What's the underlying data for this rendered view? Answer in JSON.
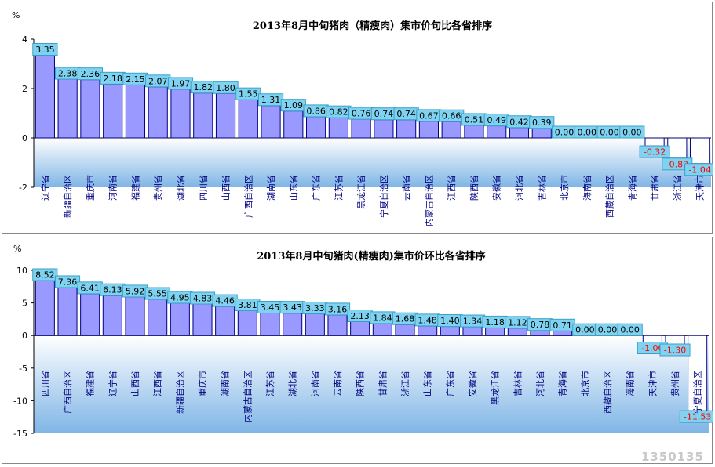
{
  "colors": {
    "bar_fill": "#9999ff",
    "bar_stroke": "#000080",
    "negative_bar_fill": "#ffffff",
    "plot_gradient_top": "#ffffff",
    "plot_gradient_bottom": "#7fb5e6",
    "label_box_fill": "#7fd3f0",
    "label_box_stroke": "#3aa0c8",
    "positive_label_text": "#000000",
    "negative_label_text": "#ff0000"
  },
  "watermark": "1350135",
  "chart_data": [
    {
      "type": "bar",
      "title": "2013年8月中旬猪肉（精瘦肉）集市价句比各省排序",
      "ylabel": "%",
      "ylim": [
        -2,
        4
      ],
      "yticks": [
        "4",
        "2",
        "0",
        "-2"
      ],
      "grid": false,
      "categories": [
        "辽宁省",
        "新疆自治区",
        "重庆市",
        "河南省",
        "福建省",
        "贵州省",
        "湖北省",
        "四川省",
        "山西省",
        "广西自治区",
        "湖南省",
        "山东省",
        "广东省",
        "江苏省",
        "黑龙江省",
        "宁夏自治区",
        "云南省",
        "内蒙古自治区",
        "江西省",
        "陕西省",
        "安徽省",
        "河北省",
        "吉林省",
        "北京市",
        "海南省",
        "西藏自治区",
        "青海省",
        "甘肃省",
        "浙江省",
        "天津市"
      ],
      "values": [
        3.35,
        2.38,
        2.36,
        2.18,
        2.15,
        2.07,
        1.97,
        1.82,
        1.8,
        1.55,
        1.31,
        1.09,
        0.86,
        0.82,
        0.76,
        0.74,
        0.74,
        0.67,
        0.66,
        0.51,
        0.49,
        0.42,
        0.39,
        0.0,
        0.0,
        0.0,
        0.0,
        -0.32,
        -0.82,
        -1.04
      ],
      "labels": [
        "3.35",
        "2.38",
        "2.36",
        "2.18",
        "2.15",
        "2.07",
        "1.97",
        "1.82",
        "1.80",
        "1.55",
        "1.31",
        "1.09",
        "0.86",
        "0.82",
        "0.76",
        "0.74",
        "0.74",
        "0.67",
        "0.66",
        "0.51",
        "0.49",
        "0.42",
        "0.39",
        "0.00",
        "0.00",
        "0.00",
        "0.00",
        "-0.32",
        "-0.82",
        "-1.04"
      ]
    },
    {
      "type": "bar",
      "title": "2013年8月中旬猪肉(精瘦肉)集市价环比各省排序",
      "ylabel": "%",
      "ylim": [
        -15,
        10
      ],
      "yticks": [
        "10",
        "5",
        "0",
        "-5",
        "-10",
        "-15"
      ],
      "grid": false,
      "categories": [
        "四川省",
        "广西自治区",
        "福建省",
        "辽宁省",
        "山西省",
        "江西省",
        "新疆自治区",
        "重庆市",
        "湖南省",
        "内蒙古自治区",
        "江苏省",
        "湖北省",
        "河南省",
        "云南省",
        "陕西省",
        "甘肃省",
        "浙江省",
        "山东省",
        "广东省",
        "安徽省",
        "黑龙江省",
        "吉林省",
        "河北省",
        "青海省",
        "北京市",
        "西藏自治区",
        "海南省",
        "天津市",
        "贵州省",
        "宁夏自治区"
      ],
      "values": [
        8.52,
        7.36,
        6.41,
        6.13,
        5.92,
        5.55,
        4.95,
        4.83,
        4.46,
        3.81,
        3.45,
        3.43,
        3.33,
        3.16,
        2.13,
        1.84,
        1.68,
        1.48,
        1.4,
        1.34,
        1.18,
        1.12,
        0.78,
        0.71,
        0.0,
        0.0,
        0.0,
        -1.0,
        -1.3,
        -11.53
      ],
      "labels": [
        "8.52",
        "7.36",
        "6.41",
        "6.13",
        "5.92",
        "5.55",
        "4.95",
        "4.83",
        "4.46",
        "3.81",
        "3.45",
        "3.43",
        "3.33",
        "3.16",
        "2.13",
        "1.84",
        "1.68",
        "1.48",
        "1.40",
        "1.34",
        "1.18",
        "1.12",
        "0.78",
        "0.71",
        "0.00",
        "0.00",
        "0.00",
        "-1.00",
        "-1.30",
        "-11.53"
      ]
    }
  ]
}
